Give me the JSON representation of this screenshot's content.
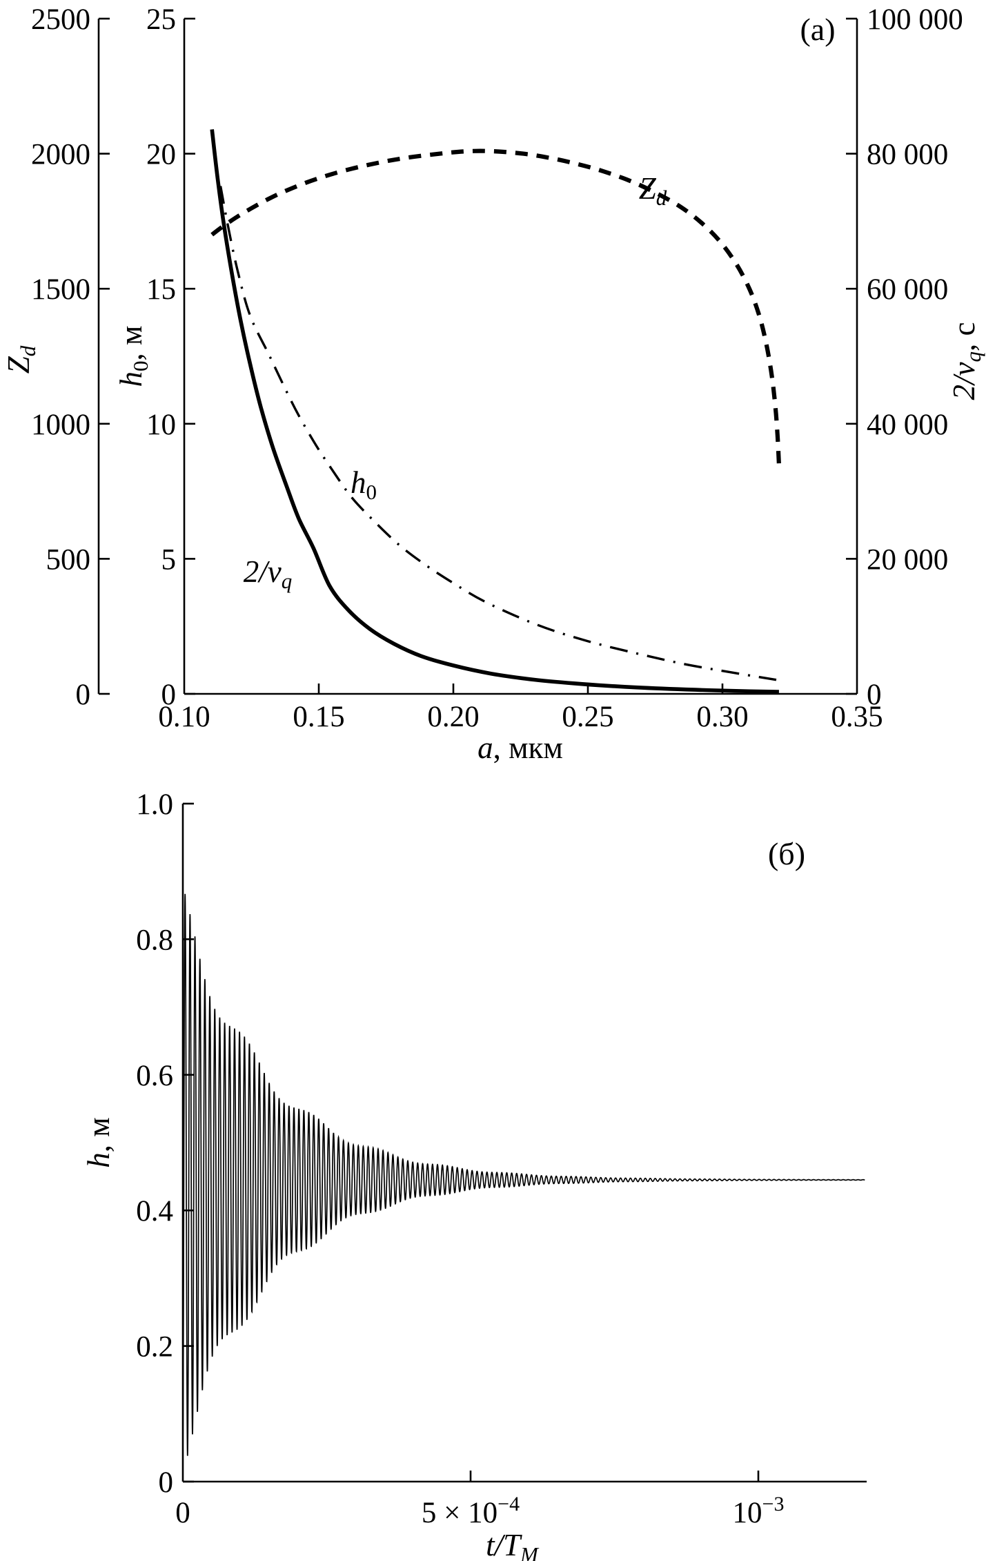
{
  "figure": {
    "panel_a_tag": "(a)",
    "panel_b_tag": "(б)"
  },
  "labels": {
    "zd_axis_main": "Z",
    "zd_axis_sub": "d",
    "h0_axis_main": "h",
    "h0_axis_sub": "0",
    "h0_axis_unit": ", м",
    "nu_axis_main": "2/ν",
    "nu_axis_sub": "q",
    "nu_axis_unit": ", с",
    "xa_main": "a",
    "xa_unit": ", мкм",
    "hb_main": "h",
    "hb_unit": ", м",
    "xb_main": "t/T",
    "xb_sub": "M",
    "curve_zd_main": "Z",
    "curve_zd_sub": "d",
    "curve_h0_main": "h",
    "curve_h0_sub": "0",
    "curve_nu_main": "2/ν",
    "curve_nu_sub": "q"
  },
  "chart_data": [
    {
      "type": "line",
      "panel": "(a)",
      "xlabel": "a, мкм",
      "x_range": [
        0.1,
        0.35
      ],
      "x_tick_values": [
        0.1,
        0.15,
        0.2,
        0.25,
        0.3,
        0.35
      ],
      "x_tick_labels": [
        "0.10",
        "0.15",
        "0.20",
        "0.25",
        "0.30",
        "0.35"
      ],
      "axis_zd": {
        "label": "Z_d",
        "range": [
          0,
          2500
        ],
        "tick_values": [
          0,
          500,
          1000,
          1500,
          2000,
          2500
        ],
        "tick_labels": [
          "0",
          "500",
          "1000",
          "1500",
          "2000",
          "2500"
        ]
      },
      "axis_h0": {
        "label": "h_0, м",
        "range": [
          0,
          25
        ],
        "tick_values": [
          0,
          5,
          10,
          15,
          20,
          25
        ],
        "tick_labels": [
          "0",
          "5",
          "10",
          "15",
          "20",
          "25"
        ]
      },
      "axis_nu": {
        "label": "2/ν_q, с",
        "range": [
          0,
          100000
        ],
        "tick_values": [
          0,
          20000,
          40000,
          60000,
          80000,
          100000
        ],
        "tick_labels": [
          "0",
          "20 000",
          "40 000",
          "60 000",
          "80 000",
          "100 000"
        ]
      },
      "series": [
        {
          "name": "Z_d",
          "style": "dashed",
          "axis": "zd",
          "points": [
            [
              0.1103,
              1700
            ],
            [
              0.114,
              1728
            ],
            [
              0.119,
              1762
            ],
            [
              0.125,
              1798
            ],
            [
              0.132,
              1836
            ],
            [
              0.14,
              1872
            ],
            [
              0.149,
              1906
            ],
            [
              0.159,
              1936
            ],
            [
              0.17,
              1962
            ],
            [
              0.182,
              1984
            ],
            [
              0.195,
              2000
            ],
            [
              0.205,
              2009
            ],
            [
              0.215,
              2009
            ],
            [
              0.226,
              2000
            ],
            [
              0.236,
              1984
            ],
            [
              0.246,
              1962
            ],
            [
              0.256,
              1934
            ],
            [
              0.266,
              1898
            ],
            [
              0.275,
              1856
            ],
            [
              0.284,
              1806
            ],
            [
              0.292,
              1746
            ],
            [
              0.299,
              1676
            ],
            [
              0.305,
              1594
            ],
            [
              0.31,
              1500
            ],
            [
              0.3137,
              1400
            ],
            [
              0.3163,
              1295
            ],
            [
              0.3183,
              1180
            ],
            [
              0.3197,
              1060
            ],
            [
              0.3205,
              950
            ],
            [
              0.321,
              850
            ]
          ]
        },
        {
          "name": "h_0",
          "style": "dashdot",
          "axis": "h0",
          "points": [
            [
              0.1135,
              18.8
            ],
            [
              0.1165,
              17.2
            ],
            [
              0.12,
              15.6
            ],
            [
              0.1245,
              14.0
            ],
            [
              0.1315,
              12.55
            ],
            [
              0.138,
              11.2
            ],
            [
              0.1426,
              10.3
            ],
            [
              0.149,
              9.2
            ],
            [
              0.1546,
              8.35
            ],
            [
              0.162,
              7.3
            ],
            [
              0.17,
              6.45
            ],
            [
              0.18,
              5.5
            ],
            [
              0.19,
              4.75
            ],
            [
              0.2,
              4.1
            ],
            [
              0.212,
              3.4
            ],
            [
              0.2313,
              2.55
            ],
            [
              0.25,
              1.95
            ],
            [
              0.268,
              1.5
            ],
            [
              0.285,
              1.12
            ],
            [
              0.3,
              0.85
            ],
            [
              0.312,
              0.65
            ],
            [
              0.32,
              0.52
            ]
          ]
        },
        {
          "name": "2/ν_q",
          "style": "solid",
          "axis": "nu",
          "points": [
            [
              0.1103,
              83600
            ],
            [
              0.1125,
              76000
            ],
            [
              0.115,
              68800
            ],
            [
              0.118,
              61600
            ],
            [
              0.121,
              55200
            ],
            [
              0.1245,
              48800
            ],
            [
              0.1285,
              42400
            ],
            [
              0.133,
              36400
            ],
            [
              0.138,
              30800
            ],
            [
              0.1425,
              26000
            ],
            [
              0.148,
              21600
            ],
            [
              0.154,
              16000
            ],
            [
              0.161,
              12400
            ],
            [
              0.169,
              9600
            ],
            [
              0.178,
              7400
            ],
            [
              0.188,
              5600
            ],
            [
              0.2,
              4200
            ],
            [
              0.214,
              3000
            ],
            [
              0.23,
              2100
            ],
            [
              0.248,
              1450
            ],
            [
              0.268,
              950
            ],
            [
              0.29,
              600
            ],
            [
              0.31,
              380
            ],
            [
              0.321,
              300
            ]
          ]
        }
      ]
    },
    {
      "type": "line",
      "panel": "(б)",
      "xlabel": "t/T_M",
      "ylabel": "h, м",
      "y_range": [
        0,
        1.0
      ],
      "y_tick_values": [
        0,
        0.2,
        0.4,
        0.6,
        0.8,
        1.0
      ],
      "y_tick_labels": [
        "0",
        "0.2",
        "0.4",
        "0.6",
        "0.8",
        "1.0"
      ],
      "x_ticks": [
        {
          "value": 0,
          "label": "0",
          "exp": null
        },
        {
          "value": 0.0005,
          "label": "5 × 10",
          "exp": "−4"
        },
        {
          "value": 0.001,
          "label": "10",
          "exp": "−3"
        }
      ],
      "t_end": 0.001185,
      "oscillation": {
        "description": "damped oscillation of levitation height h(t) settling to equilibrium",
        "settle_value": 0.445,
        "first_peak": 0.875,
        "first_min": 0.04,
        "initial_amplitude": 0.432,
        "decay_tau": 0.00015,
        "period": 8.6e-06,
        "phase": -1.25,
        "beat_period": 0.000115,
        "beat_depth": 0.16,
        "residual_amplitude": 0.0016,
        "residual_tau": 0.00055
      }
    }
  ]
}
